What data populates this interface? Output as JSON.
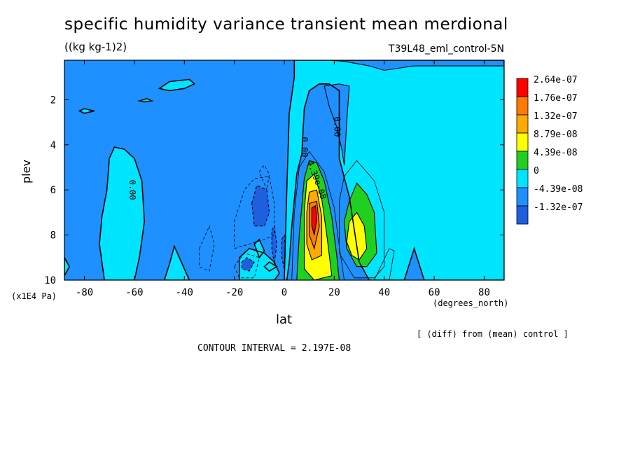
{
  "figure": {
    "title": "specific humidity variance transient mean merdional",
    "units": "((kg kg-1)2)",
    "run_name": "T39L48_eml_control-5N",
    "diff_note": "[ (diff) from (mean) control ]",
    "contour_interval": "CONTOUR INTERVAL = 2.197E-08"
  },
  "colors": {
    "level_1": "#1e5fe0",
    "level_2": "#1e90ff",
    "level_3": "#00e5ff",
    "level_4": "#20d020",
    "level_5": "#ffff00",
    "level_6": "#ffaa00",
    "level_7": "#ff7a00",
    "level_8": "#ff0000"
  },
  "chart_data": {
    "type": "heatmap",
    "subtype": "filled-contour",
    "xlabel": "lat",
    "ylabel": "plev",
    "xunits": "(degrees_north)",
    "yunits": "(x1E4 Pa)",
    "xlim": [
      -88,
      88
    ],
    "ylim": [
      10,
      0.25
    ],
    "x_ticks": [
      -80,
      -60,
      -40,
      -20,
      0,
      20,
      40,
      60,
      80
    ],
    "y_ticks": [
      2,
      4,
      6,
      8,
      10
    ],
    "x_tick_labels": [
      "-80",
      "-60",
      "-40",
      "-20",
      "0",
      "20",
      "40",
      "60",
      "80"
    ],
    "y_tick_labels": [
      "2",
      "4",
      "6",
      "8",
      "10"
    ],
    "legend": {
      "placement": "right",
      "labels": [
        "2.64e-07",
        "1.76e-07",
        "1.32e-07",
        "8.79e-08",
        "4.39e-08",
        "0",
        "-4.39e-08",
        "-1.32e-07"
      ]
    },
    "contour_labels": [
      "0.00",
      "0.00",
      "0.00",
      "4.39e-08"
    ],
    "regions": [
      {
        "level": "negative",
        "label": "background",
        "polygon": [
          [
            -88,
            0.25
          ],
          [
            88,
            0.25
          ],
          [
            88,
            10
          ],
          [
            -88,
            10
          ]
        ]
      },
      {
        "level": "zero",
        "label": "northern plume",
        "polygon": [
          [
            4,
            0.25
          ],
          [
            88,
            0.25
          ],
          [
            88,
            10
          ],
          [
            56,
            10
          ],
          [
            52,
            8.6
          ],
          [
            48,
            10
          ],
          [
            34,
            10
          ],
          [
            30,
            9.2
          ],
          [
            26,
            6.3
          ],
          [
            22,
            4.6
          ],
          [
            22,
            3.4
          ],
          [
            22,
            1.6
          ],
          [
            18,
            1.3
          ],
          [
            14,
            1.3
          ],
          [
            10,
            1.6
          ],
          [
            8,
            2.4
          ],
          [
            7,
            4.4
          ],
          [
            5,
            5.3
          ],
          [
            3,
            7.6
          ],
          [
            2,
            9.2
          ],
          [
            1,
            10
          ],
          [
            0,
            10
          ],
          [
            1,
            6
          ],
          [
            2,
            2.6
          ],
          [
            4,
            1
          ]
        ]
      },
      {
        "level": "negative",
        "label": "upper notch",
        "polygon": [
          [
            18,
            0.25
          ],
          [
            88,
            0.25
          ],
          [
            88,
            0.5
          ],
          [
            52,
            0.5
          ],
          [
            40,
            0.7
          ],
          [
            34,
            0.5
          ],
          [
            24,
            0.3
          ]
        ]
      },
      {
        "level": "negative",
        "label": "tongue",
        "polygon": [
          [
            16,
            1.4
          ],
          [
            22,
            1.3
          ],
          [
            26,
            1.4
          ],
          [
            25,
            3
          ],
          [
            24,
            4.9
          ],
          [
            23,
            4.2
          ],
          [
            21,
            3.2
          ],
          [
            18,
            2.3
          ]
        ]
      },
      {
        "level": "zero",
        "label": "south column",
        "polygon": [
          [
            -70,
            4.6
          ],
          [
            -68,
            4.1
          ],
          [
            -64,
            4.2
          ],
          [
            -60,
            4.6
          ],
          [
            -57,
            5.6
          ],
          [
            -56,
            7.4
          ],
          [
            -58,
            9
          ],
          [
            -60,
            10
          ],
          [
            -72,
            10
          ],
          [
            -74,
            8.4
          ],
          [
            -73,
            7.2
          ],
          [
            -71,
            6
          ]
        ]
      },
      {
        "level": "zero",
        "label": "upper blob",
        "polygon": [
          [
            -50,
            1.5
          ],
          [
            -46,
            1.2
          ],
          [
            -38,
            1.1
          ],
          [
            -36,
            1.3
          ],
          [
            -40,
            1.5
          ],
          [
            -46,
            1.6
          ]
        ]
      },
      {
        "level": "zero",
        "label": "mini 1",
        "polygon": [
          [
            -82,
            2.5
          ],
          [
            -80,
            2.4
          ],
          [
            -76,
            2.5
          ],
          [
            -80,
            2.6
          ]
        ]
      },
      {
        "level": "zero",
        "label": "mini 2",
        "polygon": [
          [
            -58,
            2.05
          ],
          [
            -55,
            1.95
          ],
          [
            -53,
            2.05
          ],
          [
            -56,
            2.1
          ]
        ]
      },
      {
        "level": "zero",
        "label": "bottom spike",
        "polygon": [
          [
            -48,
            10
          ],
          [
            -46,
            9.3
          ],
          [
            -44,
            8.5
          ],
          [
            -42,
            9
          ],
          [
            -38,
            10
          ]
        ]
      },
      {
        "level": "zero",
        "label": "left edge",
        "polygon": [
          [
            -88,
            9
          ],
          [
            -86,
            9.4
          ],
          [
            -88,
            9.8
          ]
        ]
      },
      {
        "level": "zero",
        "label": "lower bubbles",
        "polygon": [
          [
            -18,
            9
          ],
          [
            -14,
            8.6
          ],
          [
            -8,
            8.8
          ],
          [
            -4,
            9.2
          ],
          [
            -2,
            9.7
          ],
          [
            -4,
            10
          ],
          [
            -18,
            10
          ]
        ]
      },
      {
        "level": "level_4",
        "label": "lobe 2",
        "polygon": [
          [
            26,
            6.5
          ],
          [
            29,
            5.7
          ],
          [
            33,
            6.2
          ],
          [
            36,
            7
          ],
          [
            37,
            8.8
          ],
          [
            33,
            9.4
          ],
          [
            29,
            9.4
          ],
          [
            25,
            8.6
          ],
          [
            24,
            7.4
          ]
        ]
      },
      {
        "level": "level_5",
        "label": "lobe 2 core",
        "polygon": [
          [
            26,
            7.4
          ],
          [
            29,
            7
          ],
          [
            32,
            7.6
          ],
          [
            33,
            8.6
          ],
          [
            30,
            9.1
          ],
          [
            27,
            8.9
          ],
          [
            25,
            8.3
          ]
        ]
      },
      {
        "level": "level_4",
        "label": "main green",
        "polygon": [
          [
            8,
            5.5
          ],
          [
            10,
            4.7
          ],
          [
            13,
            4.8
          ],
          [
            16,
            5.6
          ],
          [
            19,
            7.2
          ],
          [
            21,
            8.9
          ],
          [
            22,
            10
          ],
          [
            5,
            10
          ],
          [
            6,
            8
          ]
        ]
      },
      {
        "level": "level_5",
        "label": "main yellow",
        "polygon": [
          [
            9,
            5.6
          ],
          [
            12,
            5.3
          ],
          [
            15,
            6.4
          ],
          [
            17,
            8
          ],
          [
            19,
            9.8
          ],
          [
            12,
            10
          ],
          [
            8,
            9.5
          ],
          [
            8,
            7
          ]
        ]
      },
      {
        "level": "level_6",
        "label": "main orange",
        "polygon": [
          [
            10,
            6.1
          ],
          [
            13,
            6
          ],
          [
            15,
            7.2
          ],
          [
            15,
            8.9
          ],
          [
            11,
            9.1
          ],
          [
            9,
            8.4
          ],
          [
            9,
            7
          ]
        ]
      },
      {
        "level": "level_7",
        "label": "main dark orange",
        "polygon": [
          [
            10,
            6.6
          ],
          [
            13,
            6.5
          ],
          [
            14,
            7.6
          ],
          [
            12,
            8.6
          ],
          [
            10,
            8
          ],
          [
            10,
            7.2
          ]
        ]
      },
      {
        "level": "level_8",
        "label": "main red",
        "polygon": [
          [
            11,
            6.8
          ],
          [
            12.5,
            6.7
          ],
          [
            13,
            7.3
          ],
          [
            12,
            8
          ],
          [
            11,
            7.6
          ]
        ]
      },
      {
        "level": "level_1",
        "label": "neg blob 1",
        "polygon": [
          [
            -13,
            6.6
          ],
          [
            -11,
            5.8
          ],
          [
            -7,
            6
          ],
          [
            -6,
            7
          ],
          [
            -8,
            7.6
          ],
          [
            -12,
            7.6
          ]
        ]
      },
      {
        "level": "level_1",
        "label": "neg sliver",
        "polygon": [
          [
            -5,
            7.8
          ],
          [
            -4,
            7.6
          ],
          [
            -3,
            8.4
          ],
          [
            -4,
            9.3
          ],
          [
            -5,
            8.6
          ]
        ]
      },
      {
        "level": "level_1",
        "label": "neg blob 2",
        "polygon": [
          [
            -17,
            9.2
          ],
          [
            -15,
            9
          ],
          [
            -12,
            9.2
          ],
          [
            -14,
            9.6
          ],
          [
            -17,
            9.5
          ]
        ]
      },
      {
        "level": "level_1",
        "label": "neg near 0",
        "polygon": [
          [
            -1,
            8.2
          ],
          [
            0,
            8
          ],
          [
            0.5,
            8.8
          ],
          [
            0,
            9.5
          ],
          [
            -1,
            9
          ]
        ]
      },
      {
        "level": "zero",
        "label": "small cyan 1",
        "polygon": [
          [
            -12,
            8.4
          ],
          [
            -10,
            8.2
          ],
          [
            -8,
            8.7
          ],
          [
            -10,
            9
          ]
        ]
      },
      {
        "level": "zero",
        "label": "small cyan 2",
        "polygon": [
          [
            -8,
            9.4
          ],
          [
            -6,
            9.2
          ],
          [
            -3,
            9.4
          ],
          [
            -6,
            9.6
          ]
        ]
      }
    ]
  }
}
